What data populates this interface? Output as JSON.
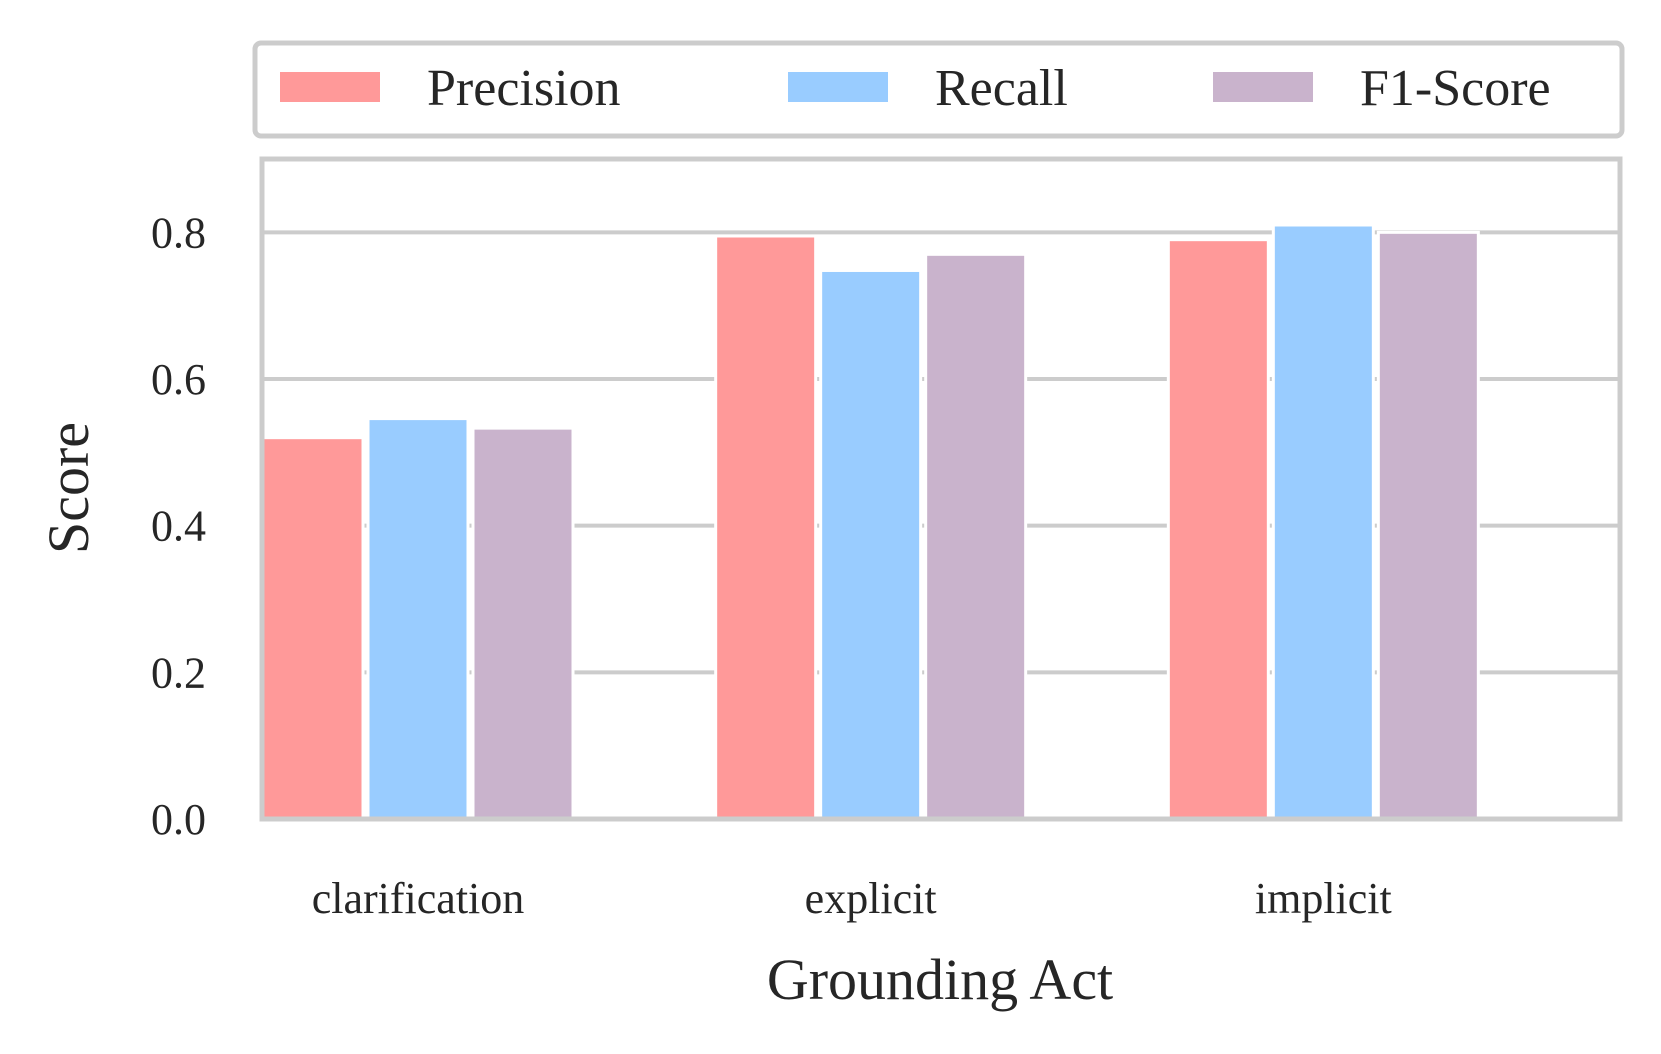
{
  "chart_data": {
    "type": "bar",
    "xlabel": "Grounding Act",
    "ylabel": "Score",
    "categories": [
      "clarification",
      "explicit",
      "implicit"
    ],
    "series": [
      {
        "name": "Precision",
        "color": "#ff9999",
        "values": [
          0.52,
          0.795,
          0.79
        ]
      },
      {
        "name": "Recall",
        "color": "#99ccff",
        "values": [
          0.546,
          0.748,
          0.81
        ]
      },
      {
        "name": "F1-Score",
        "color": "#c9b3cc",
        "values": [
          0.533,
          0.77,
          0.8
        ]
      }
    ],
    "ylim": [
      0,
      0.9
    ],
    "yticks": [
      0.0,
      0.2,
      0.4,
      0.6,
      0.8
    ],
    "ytick_labels": [
      "0.0",
      "0.2",
      "0.4",
      "0.6",
      "0.8"
    ],
    "grid": true,
    "legend_position": "top, outside plot, horizontal"
  }
}
